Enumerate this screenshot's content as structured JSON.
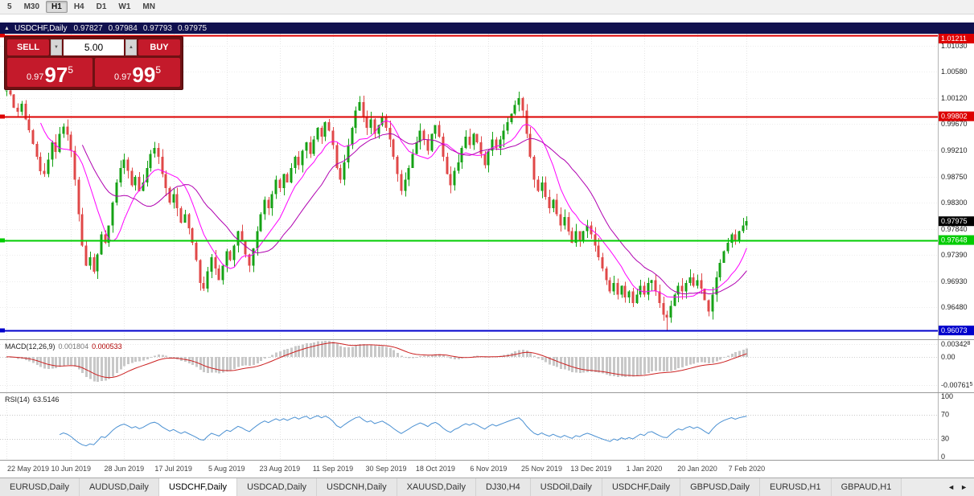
{
  "toolbar": {
    "timeframes": [
      {
        "label": "5",
        "active": false
      },
      {
        "label": "M30",
        "active": false
      },
      {
        "label": "H1",
        "active": true
      },
      {
        "label": "H4",
        "active": false
      },
      {
        "label": "D1",
        "active": false
      },
      {
        "label": "W1",
        "active": false
      },
      {
        "label": "MN",
        "active": false
      }
    ]
  },
  "title_bar": {
    "collapse_icon": "▲",
    "symbol": "USDCHF,Daily",
    "open": "0.97827",
    "high": "0.97984",
    "low": "0.97793",
    "close": "0.97975"
  },
  "trade_panel": {
    "sell_label": "SELL",
    "buy_label": "BUY",
    "volume": "5.00",
    "spinner_up": "▲",
    "spinner_down": "▼",
    "sell_price": {
      "prefix": "0.97",
      "big": "97",
      "pipette": "5"
    },
    "buy_price": {
      "prefix": "0.97",
      "big": "99",
      "pipette": "5"
    }
  },
  "chart": {
    "y_axis_labels": [
      "1.01030",
      "1.00580",
      "1.00120",
      "0.99670",
      "0.99210",
      "0.98750",
      "0.98300",
      "0.97840",
      "0.97390",
      "0.96930",
      "0.96480"
    ],
    "levels": [
      {
        "label": "1.01211",
        "price": 1.01211,
        "color": "#dd0000"
      },
      {
        "label": "0.99802",
        "price": 0.99802,
        "color": "#dd0000"
      },
      {
        "label": "0.97648",
        "price": 0.97648,
        "color": "#00cc00"
      },
      {
        "label": "0.96073",
        "price": 0.96073,
        "color": "#0000cc"
      }
    ],
    "current_price": {
      "label": "0.97975",
      "price": 0.97975,
      "badge_color": "#000000"
    },
    "up_color": "#15a215",
    "down_color": "#e04848",
    "ma_colors": [
      "#ff00ff",
      "#b000b0"
    ],
    "x_labels": [
      {
        "text": "22 May 2019",
        "i": 0
      },
      {
        "text": "10 Jun 2019",
        "i": 17
      },
      {
        "text": "28 Jun 2019",
        "i": 31
      },
      {
        "text": "17 Jul 2019",
        "i": 44
      },
      {
        "text": "5 Aug 2019",
        "i": 58
      },
      {
        "text": "23 Aug 2019",
        "i": 72
      },
      {
        "text": "11 Sep 2019",
        "i": 86
      },
      {
        "text": "30 Sep 2019",
        "i": 100
      },
      {
        "text": "18 Oct 2019",
        "i": 113
      },
      {
        "text": "6 Nov 2019",
        "i": 127
      },
      {
        "text": "25 Nov 2019",
        "i": 141
      },
      {
        "text": "13 Dec 2019",
        "i": 154
      },
      {
        "text": "1 Jan 2020",
        "i": 168
      },
      {
        "text": "20 Jan 2020",
        "i": 182
      },
      {
        "text": "7 Feb 2020",
        "i": 195
      }
    ]
  },
  "chart_data": {
    "type": "candlestick",
    "symbol": "USDCHF",
    "timeframe": "Daily",
    "wick_range": 0.0014,
    "closes": [
      1.0025,
      1.0018,
      0.9995,
      0.9988,
      1.0002,
      0.9975,
      0.9956,
      0.9932,
      0.991,
      0.9885,
      0.988,
      0.9905,
      0.9935,
      0.9918,
      0.995,
      0.9962,
      0.9948,
      0.992,
      0.987,
      0.981,
      0.9755,
      0.972,
      0.9735,
      0.971,
      0.974,
      0.9775,
      0.976,
      0.979,
      0.983,
      0.9865,
      0.989,
      0.9905,
      0.9885,
      0.986,
      0.9875,
      0.985,
      0.9865,
      0.989,
      0.9915,
      0.9925,
      0.991,
      0.988,
      0.9855,
      0.983,
      0.9845,
      0.982,
      0.9795,
      0.981,
      0.9785,
      0.976,
      0.973,
      0.969,
      0.968,
      0.971,
      0.9735,
      0.9715,
      0.9695,
      0.972,
      0.9745,
      0.973,
      0.9755,
      0.978,
      0.9765,
      0.974,
      0.972,
      0.975,
      0.978,
      0.981,
      0.9835,
      0.982,
      0.9845,
      0.987,
      0.9855,
      0.988,
      0.9865,
      0.989,
      0.991,
      0.9895,
      0.992,
      0.9935,
      0.9915,
      0.994,
      0.996,
      0.9945,
      0.997,
      0.9955,
      0.993,
      0.989,
      0.987,
      0.99,
      0.993,
      0.996,
      0.999,
      1.0005,
      0.998,
      0.996,
      0.9975,
      0.995,
      0.9965,
      0.998,
      0.996,
      0.994,
      0.991,
      0.988,
      0.985,
      0.987,
      0.989,
      0.9915,
      0.9935,
      0.9955,
      0.994,
      0.992,
      0.995,
      0.9965,
      0.9945,
      0.991,
      0.988,
      0.986,
      0.9885,
      0.99,
      0.9925,
      0.9945,
      0.993,
      0.995,
      0.9935,
      0.9915,
      0.9895,
      0.992,
      0.994,
      0.9925,
      0.994,
      0.9955,
      0.997,
      0.9985,
      1.0,
      1.0012,
      0.999,
      0.995,
      0.991,
      0.987,
      0.985,
      0.9865,
      0.984,
      0.982,
      0.9835,
      0.981,
      0.979,
      0.9805,
      0.978,
      0.976,
      0.978,
      0.9765,
      0.978,
      0.979,
      0.9775,
      0.9755,
      0.9735,
      0.9715,
      0.9695,
      0.9675,
      0.969,
      0.967,
      0.9685,
      0.9665,
      0.9675,
      0.9655,
      0.967,
      0.9685,
      0.967,
      0.969,
      0.9695,
      0.9675,
      0.9655,
      0.9635,
      0.963,
      0.965,
      0.967,
      0.9685,
      0.9675,
      0.969,
      0.97,
      0.9685,
      0.9695,
      0.968,
      0.966,
      0.964,
      0.967,
      0.97,
      0.9725,
      0.9745,
      0.976,
      0.9775,
      0.9765,
      0.978,
      0.979,
      0.97975
    ]
  },
  "macd": {
    "name": "MACD(12,26,9)",
    "main_value": "0.001804",
    "signal_value": "0.000533",
    "fast": 12,
    "slow": 26,
    "signal": 9,
    "scale": [
      {
        "t": "0.00342",
        "p": "8",
        "v": 0.003428
      },
      {
        "t": "0.00",
        "p": "",
        "v": 0
      },
      {
        "t": "-0.00761",
        "p": "5",
        "v": -0.007615
      }
    ],
    "hist_color": "#c8c8c8",
    "signal_color": "#cc2222"
  },
  "rsi": {
    "name": "RSI(14)",
    "value": "63.5146",
    "period": 14,
    "scale": [
      {
        "t": "100",
        "v": 100
      },
      {
        "t": "70",
        "v": 70
      },
      {
        "t": "30",
        "v": 30
      },
      {
        "t": "0",
        "v": 0
      }
    ],
    "guides": [
      70,
      30
    ],
    "line_color": "#4a90d2"
  },
  "tabs": {
    "items": [
      {
        "label": "EURUSD,Daily",
        "active": false
      },
      {
        "label": "AUDUSD,Daily",
        "active": false
      },
      {
        "label": "USDCHF,Daily",
        "active": true
      },
      {
        "label": "USDCAD,Daily",
        "active": false
      },
      {
        "label": "USDCNH,Daily",
        "active": false
      },
      {
        "label": "XAUUSD,Daily",
        "active": false
      },
      {
        "label": "DJ30,H4",
        "active": false
      },
      {
        "label": "USDOil,Daily",
        "active": false
      },
      {
        "label": "USDCHF,Daily",
        "active": false
      },
      {
        "label": "GBPUSD,Daily",
        "active": false
      },
      {
        "label": "EURUSD,H1",
        "active": false
      },
      {
        "label": "GBPAUD,H1",
        "active": false
      }
    ],
    "scroll_left": "◄",
    "scroll_right": "►"
  }
}
